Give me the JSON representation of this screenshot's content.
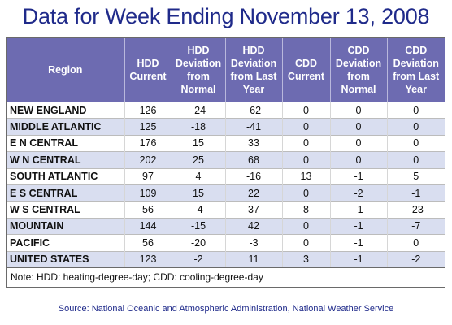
{
  "title": "Data for Week Ending November 13, 2008",
  "headers": {
    "region": "Region",
    "hdd_current": "HDD Current",
    "hdd_dev_normal": "HDD Deviation from Normal",
    "hdd_dev_last_year": "HDD Deviation from Last Year",
    "cdd_current": "CDD Current",
    "cdd_dev_normal": "CDD Deviation from Normal",
    "cdd_dev_last_year": "CDD Deviation from Last Year"
  },
  "chart_data": {
    "type": "table",
    "title": "Data for Week Ending November 13, 2008",
    "columns": [
      "Region",
      "HDD Current",
      "HDD Deviation from Normal",
      "HDD Deviation from Last Year",
      "CDD Current",
      "CDD Deviation from Normal",
      "CDD Deviation from Last Year"
    ],
    "rows": [
      [
        "NEW ENGLAND",
        "126",
        "-24",
        "-62",
        "0",
        "0",
        "0"
      ],
      [
        "MIDDLE ATLANTIC",
        "125",
        "-18",
        "-41",
        "0",
        "0",
        "0"
      ],
      [
        "E N CENTRAL",
        "176",
        "15",
        "33",
        "0",
        "0",
        "0"
      ],
      [
        "W N CENTRAL",
        "202",
        "25",
        "68",
        "0",
        "0",
        "0"
      ],
      [
        "SOUTH ATLANTIC",
        "97",
        "4",
        "-16",
        "13",
        "-1",
        "5"
      ],
      [
        "E S CENTRAL",
        "109",
        "15",
        "22",
        "0",
        "-2",
        "-1"
      ],
      [
        "W S CENTRAL",
        "56",
        "-4",
        "37",
        "8",
        "-1",
        "-23"
      ],
      [
        "MOUNTAIN",
        "144",
        "-15",
        "42",
        "0",
        "-1",
        "-7"
      ],
      [
        "PACIFIC",
        "56",
        "-20",
        "-3",
        "0",
        "-1",
        "0"
      ],
      [
        "UNITED STATES",
        "123",
        "-2",
        "11",
        "3",
        "-1",
        "-2"
      ]
    ]
  },
  "note": "Note: HDD: heating-degree-day; CDD: cooling-degree-day",
  "source": "Source:  National Oceanic and Atmospheric Administration, National Weather Service",
  "colors": {
    "title": "#1f2a8a",
    "header_bg": "#6d6bb1",
    "row_alt_bg": "#d9def0"
  }
}
